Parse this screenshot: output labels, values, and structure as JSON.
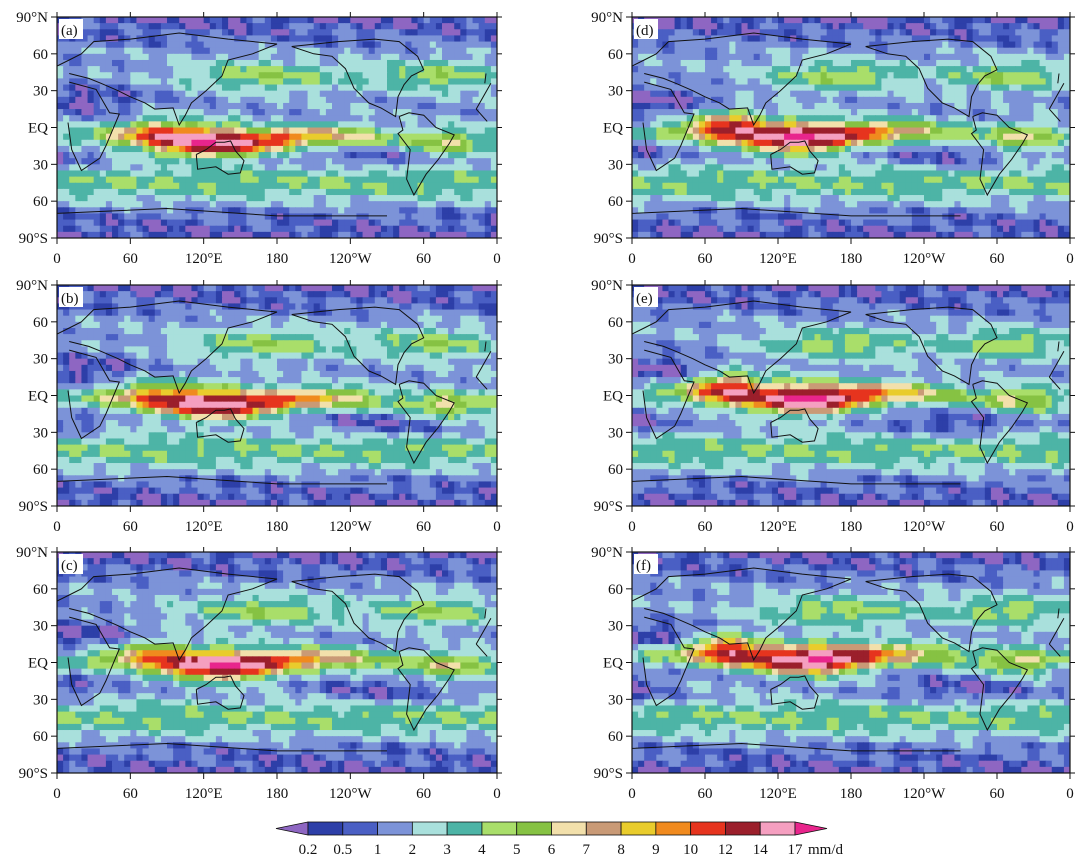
{
  "chart_data": {
    "type": "heatmap",
    "description_panels": 6,
    "panels": [
      {
        "label": "(a)"
      },
      {
        "label": "(b)"
      },
      {
        "label": "(c)"
      },
      {
        "label": "(d)"
      },
      {
        "label": "(e)"
      },
      {
        "label": "(f)"
      }
    ],
    "x_ticks": [
      "0",
      "60",
      "120°E",
      "180",
      "120°W",
      "60",
      "0"
    ],
    "y_ticks": [
      "90°N",
      "60",
      "30",
      "EQ",
      "30",
      "60",
      "90°S"
    ],
    "colorbar": {
      "levels": [
        "0.2",
        "0.5",
        "1",
        "2",
        "3",
        "4",
        "5",
        "6",
        "7",
        "8",
        "9",
        "10",
        "12",
        "14",
        "17"
      ],
      "unit": "mm/d",
      "colors": [
        "#8e66c2",
        "#2d3fa8",
        "#4a5fc4",
        "#7c93d8",
        "#a9e0dc",
        "#4db4a6",
        "#a9de6a",
        "#86c243",
        "#f2e0ab",
        "#c99a76",
        "#e9cc2c",
        "#f08a1e",
        "#e6341e",
        "#9b1f2b",
        "#f59fc0",
        "#e8258c"
      ]
    }
  }
}
